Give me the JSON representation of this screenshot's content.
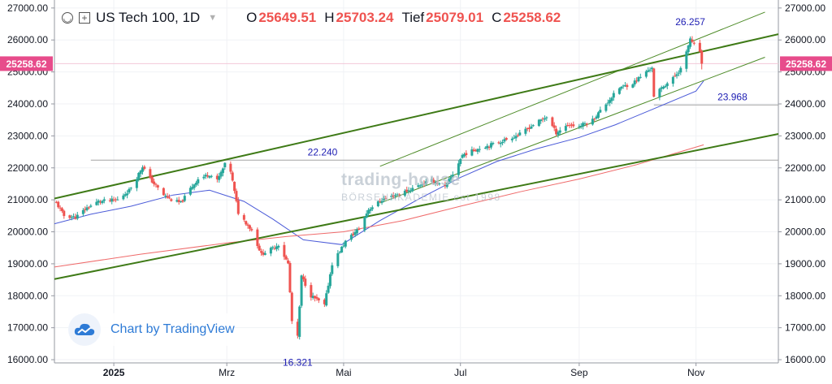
{
  "legend": {
    "symbol": "US Tech 100, 1D",
    "open_label": "O",
    "open": "25649.51",
    "high_label": "H",
    "high": "25703.24",
    "low_label": "Tief",
    "low": "25079.01",
    "close_label": "C",
    "close": "25258.62"
  },
  "watermark": {
    "line1": "trading-house",
    "line2": "BÖRSENAKADEMIE est 1998"
  },
  "attribution": "Chart by TradingView",
  "icons": {
    "hide": "eye-toggle-icon",
    "add": "plus-icon",
    "attribution": "tradingview-cloud-icon",
    "dropdown": "chevron-down-icon"
  },
  "chart_data": {
    "type": "candlestick",
    "price_axis": {
      "ylim": [
        15900,
        27250
      ],
      "ticks": [
        16000,
        17000,
        18000,
        19000,
        20000,
        21000,
        22000,
        23000,
        24000,
        25000,
        26000,
        27000
      ],
      "tick_labels": [
        "16000.00",
        "17000.00",
        "18000.00",
        "19000.00",
        "20000.00",
        "21000.00",
        "22000.00",
        "23000.00",
        "24000.00",
        "25000.00",
        "26000.00",
        "27000.00"
      ]
    },
    "time_axis": {
      "xlim": [
        "2024-12-01",
        "2025-12-14"
      ],
      "ticks": [
        {
          "date": "2025-01-01",
          "label": "2025"
        },
        {
          "date": "2025-03-01",
          "label": "Mrz"
        },
        {
          "date": "2025-05-01",
          "label": "Mai"
        },
        {
          "date": "2025-07-01",
          "label": "Jul"
        },
        {
          "date": "2025-09-01",
          "label": "Sep"
        },
        {
          "date": "2025-11-01",
          "label": "Nov"
        }
      ]
    },
    "last_price": {
      "value": 25258.62,
      "label": "25258.62",
      "color": "#e74c8b"
    },
    "colors": {
      "up": "#26a69a",
      "down": "#ef5350",
      "trend": "#3e7a16",
      "channel": "#4c8a26",
      "sma_fast": "#4a5ad8",
      "sma_slow": "#ef6a6a",
      "level_label": "#1c1cb3"
    },
    "key_prices": [
      {
        "date": "2025-04-07",
        "price": 16321,
        "label": "16.321",
        "position": "below"
      },
      {
        "date": "2025-10-29",
        "price": 26257,
        "label": "26.257",
        "position": "above"
      }
    ],
    "horizontal_levels": [
      {
        "price": 22240,
        "label": "22.240",
        "from": "2024-12-20",
        "to": "2025-12-14",
        "label_date": "2025-04-20"
      },
      {
        "price": 23968,
        "label": "23.968",
        "from": "2025-10-10",
        "to": "2025-12-14",
        "label_date": "2025-11-20"
      }
    ],
    "trendlines": [
      {
        "name": "",
        "from": {
          "date": "2024-12-01",
          "price": 21040
        },
        "to": {
          "date": "2025-12-14",
          "price": 26180
        },
        "width": 2
      },
      {
        "name": "",
        "from": {
          "date": "2024-12-01",
          "price": 18520
        },
        "to": {
          "date": "2025-12-14",
          "price": 23060
        },
        "width": 2
      },
      {
        "name": "",
        "from": {
          "date": "2025-05-20",
          "price": 22050
        },
        "to": {
          "date": "2025-12-07",
          "price": 26870
        },
        "width": 1
      },
      {
        "name": "",
        "from": {
          "date": "2025-05-20",
          "price": 20900
        },
        "to": {
          "date": "2025-12-07",
          "price": 25460
        },
        "width": 1
      }
    ],
    "moving_averages": [
      {
        "name": "",
        "color": "#4a5ad8",
        "points": [
          [
            "2024-12-01",
            20250
          ],
          [
            "2024-12-20",
            20550
          ],
          [
            "2025-01-10",
            20800
          ],
          [
            "2025-02-01",
            21150
          ],
          [
            "2025-02-20",
            21300
          ],
          [
            "2025-03-10",
            20950
          ],
          [
            "2025-03-25",
            20400
          ],
          [
            "2025-04-10",
            19750
          ],
          [
            "2025-04-30",
            19600
          ],
          [
            "2025-05-20",
            20350
          ],
          [
            "2025-06-10",
            21050
          ],
          [
            "2025-07-01",
            21700
          ],
          [
            "2025-07-20",
            22200
          ],
          [
            "2025-08-10",
            22600
          ],
          [
            "2025-09-01",
            22950
          ],
          [
            "2025-09-20",
            23350
          ],
          [
            "2025-10-10",
            23850
          ],
          [
            "2025-11-01",
            24400
          ],
          [
            "2025-11-05",
            24720
          ]
        ]
      },
      {
        "name": "",
        "color": "#ef6a6a",
        "points": [
          [
            "2024-12-01",
            18900
          ],
          [
            "2025-01-15",
            19300
          ],
          [
            "2025-03-01",
            19650
          ],
          [
            "2025-04-01",
            19850
          ],
          [
            "2025-05-01",
            20000
          ],
          [
            "2025-06-01",
            20350
          ],
          [
            "2025-07-01",
            20800
          ],
          [
            "2025-08-01",
            21250
          ],
          [
            "2025-09-01",
            21650
          ],
          [
            "2025-10-01",
            22100
          ],
          [
            "2025-11-05",
            22720
          ]
        ]
      }
    ],
    "series": {
      "anchors": [
        [
          "2024-12-02",
          20900
        ],
        [
          "2024-12-06",
          20500
        ],
        [
          "2024-12-12",
          20450
        ],
        [
          "2024-12-18",
          20750
        ],
        [
          "2024-12-24",
          20950
        ],
        [
          "2025-01-03",
          21000
        ],
        [
          "2025-01-09",
          21300
        ],
        [
          "2025-01-13",
          21700
        ],
        [
          "2025-01-16",
          22050
        ],
        [
          "2025-01-20",
          21650
        ],
        [
          "2025-01-27",
          21150
        ],
        [
          "2025-01-31",
          21000
        ],
        [
          "2025-02-05",
          20900
        ],
        [
          "2025-02-10",
          21350
        ],
        [
          "2025-02-14",
          21650
        ],
        [
          "2025-02-20",
          21800
        ],
        [
          "2025-02-24",
          21600
        ],
        [
          "2025-02-28",
          22100
        ],
        [
          "2025-03-03",
          21900
        ],
        [
          "2025-03-07",
          20600
        ],
        [
          "2025-03-14",
          20050
        ],
        [
          "2025-03-19",
          19300
        ],
        [
          "2025-03-24",
          19450
        ],
        [
          "2025-03-28",
          19600
        ],
        [
          "2025-04-02",
          19000
        ],
        [
          "2025-04-04",
          17200
        ],
        [
          "2025-04-07",
          16700
        ],
        [
          "2025-04-09",
          18600
        ],
        [
          "2025-04-14",
          18000
        ],
        [
          "2025-04-21",
          17700
        ],
        [
          "2025-04-25",
          19000
        ],
        [
          "2025-05-02",
          19700
        ],
        [
          "2025-05-09",
          20100
        ],
        [
          "2025-05-14",
          20700
        ],
        [
          "2025-05-21",
          21000
        ],
        [
          "2025-05-28",
          21150
        ],
        [
          "2025-06-04",
          21300
        ],
        [
          "2025-06-11",
          21500
        ],
        [
          "2025-06-16",
          21600
        ],
        [
          "2025-06-23",
          21400
        ],
        [
          "2025-06-27",
          21800
        ],
        [
          "2025-07-02",
          22400
        ],
        [
          "2025-07-10",
          22600
        ],
        [
          "2025-07-21",
          22800
        ],
        [
          "2025-08-01",
          23050
        ],
        [
          "2025-08-08",
          23350
        ],
        [
          "2025-08-15",
          23600
        ],
        [
          "2025-08-20",
          23100
        ],
        [
          "2025-08-26",
          23350
        ],
        [
          "2025-09-01",
          23300
        ],
        [
          "2025-09-08",
          23500
        ],
        [
          "2025-09-15",
          24000
        ],
        [
          "2025-09-22",
          24500
        ],
        [
          "2025-09-29",
          24650
        ],
        [
          "2025-10-06",
          25000
        ],
        [
          "2025-10-09",
          25150
        ],
        [
          "2025-10-10",
          24200
        ],
        [
          "2025-10-14",
          24500
        ],
        [
          "2025-10-20",
          24800
        ],
        [
          "2025-10-24",
          25100
        ],
        [
          "2025-10-27",
          25600
        ],
        [
          "2025-10-29",
          26050
        ],
        [
          "2025-10-30",
          25900
        ],
        [
          "2025-11-03",
          25650
        ],
        [
          "2025-11-04",
          25259
        ]
      ],
      "last_candle": {
        "date": "2025-11-04",
        "open": 25649.51,
        "high": 25703.24,
        "low": 25079.01,
        "close": 25258.62
      }
    }
  }
}
